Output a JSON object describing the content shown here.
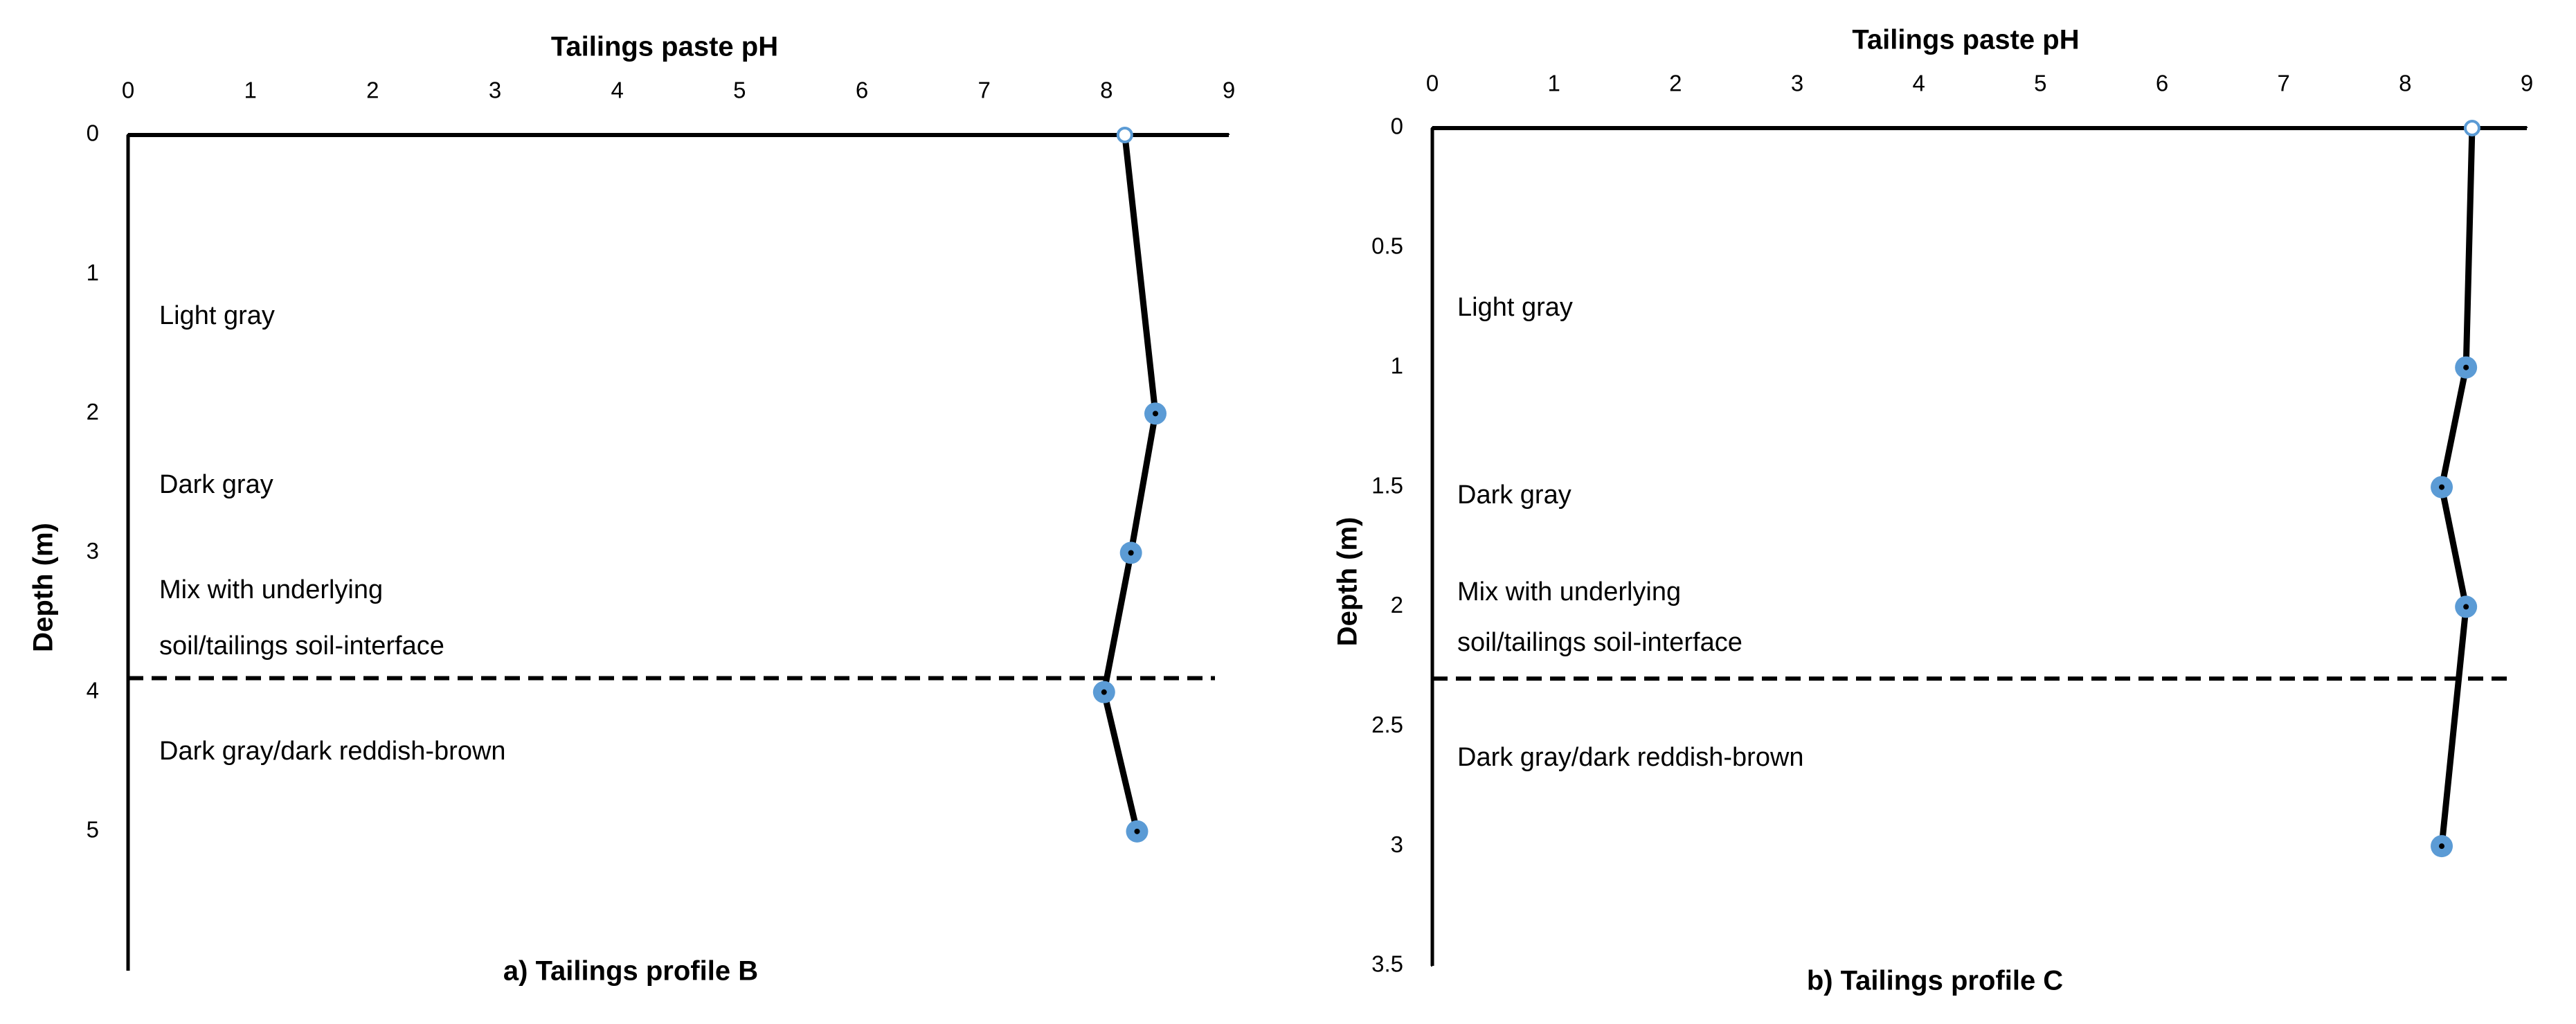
{
  "chart_data": [
    {
      "type": "line",
      "x_label": "Tailings paste pH",
      "y_label": "Depth (m)",
      "caption": "a) Tailings profile B",
      "xlim": [
        0,
        9
      ],
      "xticks": [
        0,
        1,
        2,
        3,
        4,
        5,
        6,
        7,
        8,
        9
      ],
      "ylim": [
        0,
        6
      ],
      "yticks": [
        0,
        1,
        2,
        3,
        4,
        5
      ],
      "y_inverted": true,
      "series": [
        {
          "color": "#5b9bd5",
          "x": [
            8.15,
            8.4,
            8.2,
            7.98,
            8.25
          ],
          "y": [
            0,
            2,
            3,
            4,
            5
          ]
        }
      ],
      "boundary_depth": 3.9,
      "annotations": [
        "Light gray",
        "Dark gray",
        "Mix with underlying",
        "soil/tailings soil-interface",
        "Dark gray/dark reddish-brown"
      ]
    },
    {
      "type": "line",
      "x_label": "Tailings paste pH",
      "y_label": "Depth (m)",
      "caption": "b) Tailings profile C",
      "xlim": [
        0,
        9
      ],
      "xticks": [
        0,
        1,
        2,
        3,
        4,
        5,
        6,
        7,
        8,
        9
      ],
      "ylim": [
        0,
        3.5
      ],
      "yticks": [
        0,
        0.5,
        1,
        1.5,
        2,
        2.5,
        3,
        3.5
      ],
      "y_inverted": true,
      "series": [
        {
          "color": "#5b9bd5",
          "x": [
            8.55,
            8.5,
            8.3,
            8.5,
            8.3
          ],
          "y": [
            0,
            1,
            1.5,
            2,
            3
          ]
        }
      ],
      "boundary_depth": 2.3,
      "annotations": [
        "Light gray",
        "Dark gray",
        "Mix with underlying",
        "soil/tailings soil-interface",
        "Dark gray/dark reddish-brown"
      ]
    }
  ]
}
